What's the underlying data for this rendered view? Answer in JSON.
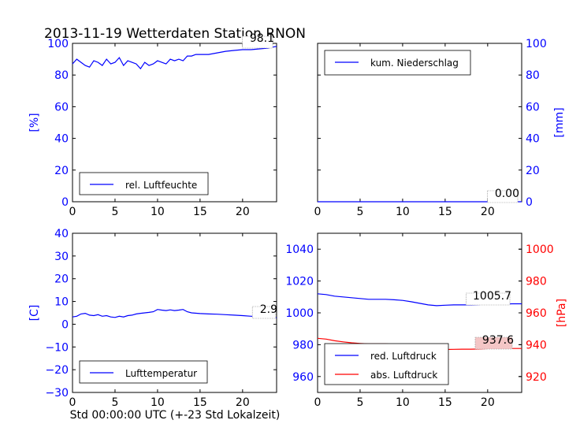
{
  "title": "2013-11-19 Wetterdaten Station RNON",
  "xlabel": "Std 00:00:00 UTC (+-23 Std Lokalzeit)",
  "colors": {
    "blue": "#0000ff",
    "red": "#ff0000",
    "axis": "#000000"
  },
  "chart_data": [
    {
      "id": "humidity",
      "type": "line",
      "xlim": [
        0,
        24
      ],
      "ylim": [
        0,
        100
      ],
      "xticks": [
        "0",
        "5",
        "10",
        "15",
        "20"
      ],
      "yticks": [
        "0",
        "20",
        "40",
        "60",
        "80",
        "100"
      ],
      "ylabel": "[%]",
      "legend": "lower-left",
      "series": [
        {
          "name": "rel. Luftfeuchte",
          "color": "#0000ff",
          "x": [
            0,
            0.5,
            1,
            1.5,
            2,
            2.5,
            3,
            3.5,
            4,
            4.5,
            5,
            5.5,
            6,
            6.5,
            7,
            7.5,
            8,
            8.5,
            9,
            9.5,
            10,
            10.5,
            11,
            11.5,
            12,
            12.5,
            13,
            13.5,
            14,
            14.5,
            15,
            16,
            17,
            18,
            19,
            20,
            21,
            22,
            23,
            24
          ],
          "values": [
            87,
            90,
            88,
            86,
            85,
            89,
            88,
            86,
            90,
            87,
            88,
            91,
            86,
            89,
            88,
            87,
            84,
            88,
            86,
            87,
            89,
            88,
            87,
            90,
            89,
            90,
            89,
            92,
            92,
            93,
            93,
            93,
            94,
            95,
            95.5,
            96,
            96,
            96.5,
            97,
            98.1
          ]
        }
      ],
      "annotation": "98.1"
    },
    {
      "id": "precipitation",
      "type": "line",
      "xlim": [
        0,
        24
      ],
      "ylim": [
        0,
        100
      ],
      "xticks": [
        "0",
        "5",
        "10",
        "15",
        "20"
      ],
      "yticks": [
        "0",
        "20",
        "40",
        "60",
        "80",
        "100"
      ],
      "ylabel": "[mm]",
      "yaxis_side": "right",
      "legend": "upper-left",
      "series": [
        {
          "name": "kum. Niederschlag",
          "color": "#0000ff",
          "x": [
            0,
            24
          ],
          "values": [
            0,
            0
          ]
        }
      ],
      "annotation": "0.00"
    },
    {
      "id": "temperature",
      "type": "line",
      "xlim": [
        0,
        24
      ],
      "ylim": [
        -30,
        40
      ],
      "xticks": [
        "0",
        "5",
        "10",
        "15",
        "20"
      ],
      "yticks": [
        "−30",
        "−20",
        "−10",
        "0",
        "10",
        "20",
        "30",
        "40"
      ],
      "ylabel": "[C]",
      "legend": "lower-left",
      "series": [
        {
          "name": "Lufttemperatur",
          "color": "#0000ff",
          "x": [
            0,
            0.5,
            1,
            1.5,
            2,
            2.5,
            3,
            3.5,
            4,
            4.5,
            5,
            5.5,
            6,
            6.5,
            7,
            7.5,
            8,
            8.5,
            9,
            9.5,
            10,
            10.5,
            11,
            11.5,
            12,
            12.5,
            13,
            13.5,
            14,
            15,
            16,
            17,
            18,
            19,
            20,
            21,
            22,
            23,
            24
          ],
          "values": [
            3.2,
            3.5,
            4.5,
            4.8,
            4.0,
            3.8,
            4.2,
            3.5,
            3.8,
            3.2,
            3.0,
            3.5,
            3.2,
            3.8,
            4.0,
            4.5,
            4.8,
            5.0,
            5.2,
            5.5,
            6.5,
            6.2,
            6.0,
            6.3,
            6.0,
            6.2,
            6.5,
            5.5,
            5.0,
            4.7,
            4.5,
            4.4,
            4.2,
            4.0,
            3.8,
            3.5,
            3.3,
            3.0,
            2.9
          ]
        }
      ],
      "annotation": "2.9"
    },
    {
      "id": "pressure",
      "type": "line",
      "xlim": [
        0,
        24
      ],
      "ylim": [
        950,
        1050
      ],
      "ylim2": [
        910,
        1010
      ],
      "xticks": [
        "0",
        "5",
        "10",
        "15",
        "20"
      ],
      "yticks": [
        "960",
        "980",
        "1000",
        "1020",
        "1040"
      ],
      "yticks2": [
        "920",
        "940",
        "960",
        "980",
        "1000"
      ],
      "ylabel2": "[hPa]",
      "legend": "lower-left",
      "series": [
        {
          "name": "red. Luftdruck",
          "color": "#0000ff",
          "axis": "left",
          "x": [
            0,
            1,
            2,
            3,
            4,
            5,
            6,
            7,
            8,
            9,
            10,
            11,
            12,
            13,
            14,
            15,
            16,
            17,
            18,
            19,
            20,
            21,
            22,
            23,
            24
          ],
          "values": [
            1012,
            1011.5,
            1010.5,
            1010,
            1009.5,
            1009,
            1008.5,
            1008.5,
            1008.5,
            1008.2,
            1007.8,
            1007,
            1006,
            1005,
            1004.5,
            1004.8,
            1005,
            1005,
            1005,
            1005.2,
            1005.5,
            1005.5,
            1005.6,
            1005.7,
            1005.7
          ]
        },
        {
          "name": "abs. Luftdruck",
          "color": "#ff0000",
          "axis": "right",
          "x": [
            0,
            1,
            2,
            3,
            4,
            5,
            6,
            7,
            8,
            9,
            10,
            11,
            12,
            13,
            14,
            15,
            16,
            17,
            18,
            19,
            20,
            21,
            22,
            23,
            24
          ],
          "values": [
            944,
            943.5,
            942.5,
            941.8,
            941.2,
            940.8,
            940.5,
            940.5,
            940.5,
            940.2,
            939.8,
            939,
            938,
            937,
            936.8,
            937,
            937.1,
            937.2,
            937.2,
            937.3,
            937.5,
            937.5,
            937.6,
            937.6,
            937.6
          ]
        }
      ],
      "annotations": [
        "1005.7",
        "937.6"
      ]
    }
  ]
}
